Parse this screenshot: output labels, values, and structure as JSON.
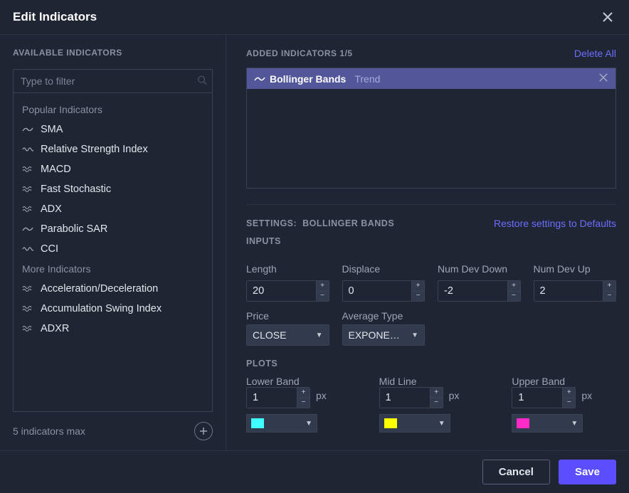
{
  "header": {
    "title": "Edit Indicators"
  },
  "left": {
    "section": "AVAILABLE INDICATORS",
    "filterPlaceholder": "Type to filter",
    "popularLabel": "Popular Indicators",
    "moreLabel": "More Indicators",
    "popular": [
      {
        "icon": "line",
        "label": "SMA"
      },
      {
        "icon": "wave",
        "label": "Relative Strength Index"
      },
      {
        "icon": "wave2",
        "label": "MACD"
      },
      {
        "icon": "wave2",
        "label": "Fast Stochastic"
      },
      {
        "icon": "wave2",
        "label": "ADX"
      },
      {
        "icon": "line",
        "label": "Parabolic SAR"
      },
      {
        "icon": "wave",
        "label": "CCI"
      }
    ],
    "more": [
      {
        "icon": "wave2",
        "label": "Acceleration/Deceleration"
      },
      {
        "icon": "wave2",
        "label": "Accumulation Swing Index"
      },
      {
        "icon": "wave2",
        "label": "ADXR"
      }
    ],
    "footer": "5 indicators max"
  },
  "right": {
    "addedLabel": "ADDED INDICATORS 1/5",
    "deleteAll": "Delete All",
    "added": {
      "name": "Bollinger Bands",
      "cat": "Trend"
    },
    "settingsPrefix": "SETTINGS:",
    "settingsFor": "BOLLINGER BANDS",
    "restore": "Restore settings to Defaults",
    "inputsLabel": "INPUTS",
    "inputs": {
      "length": {
        "label": "Length",
        "value": "20"
      },
      "displace": {
        "label": "Displace",
        "value": "0"
      },
      "numDevDown": {
        "label": "Num Dev Down",
        "value": "-2"
      },
      "numDevUp": {
        "label": "Num Dev Up",
        "value": "2"
      },
      "price": {
        "label": "Price",
        "value": "CLOSE"
      },
      "avgType": {
        "label": "Average Type",
        "value": "EXPONE…"
      }
    },
    "plotsLabel": "PLOTS",
    "pxLabel": "px",
    "plots": {
      "lower": {
        "label": "Lower Band",
        "value": "1",
        "color": "#40ffff"
      },
      "mid": {
        "label": "Mid Line",
        "value": "1",
        "color": "#ffff00"
      },
      "upper": {
        "label": "Upper Band",
        "value": "1",
        "color": "#ff29c7"
      }
    }
  },
  "footer": {
    "cancel": "Cancel",
    "save": "Save"
  }
}
